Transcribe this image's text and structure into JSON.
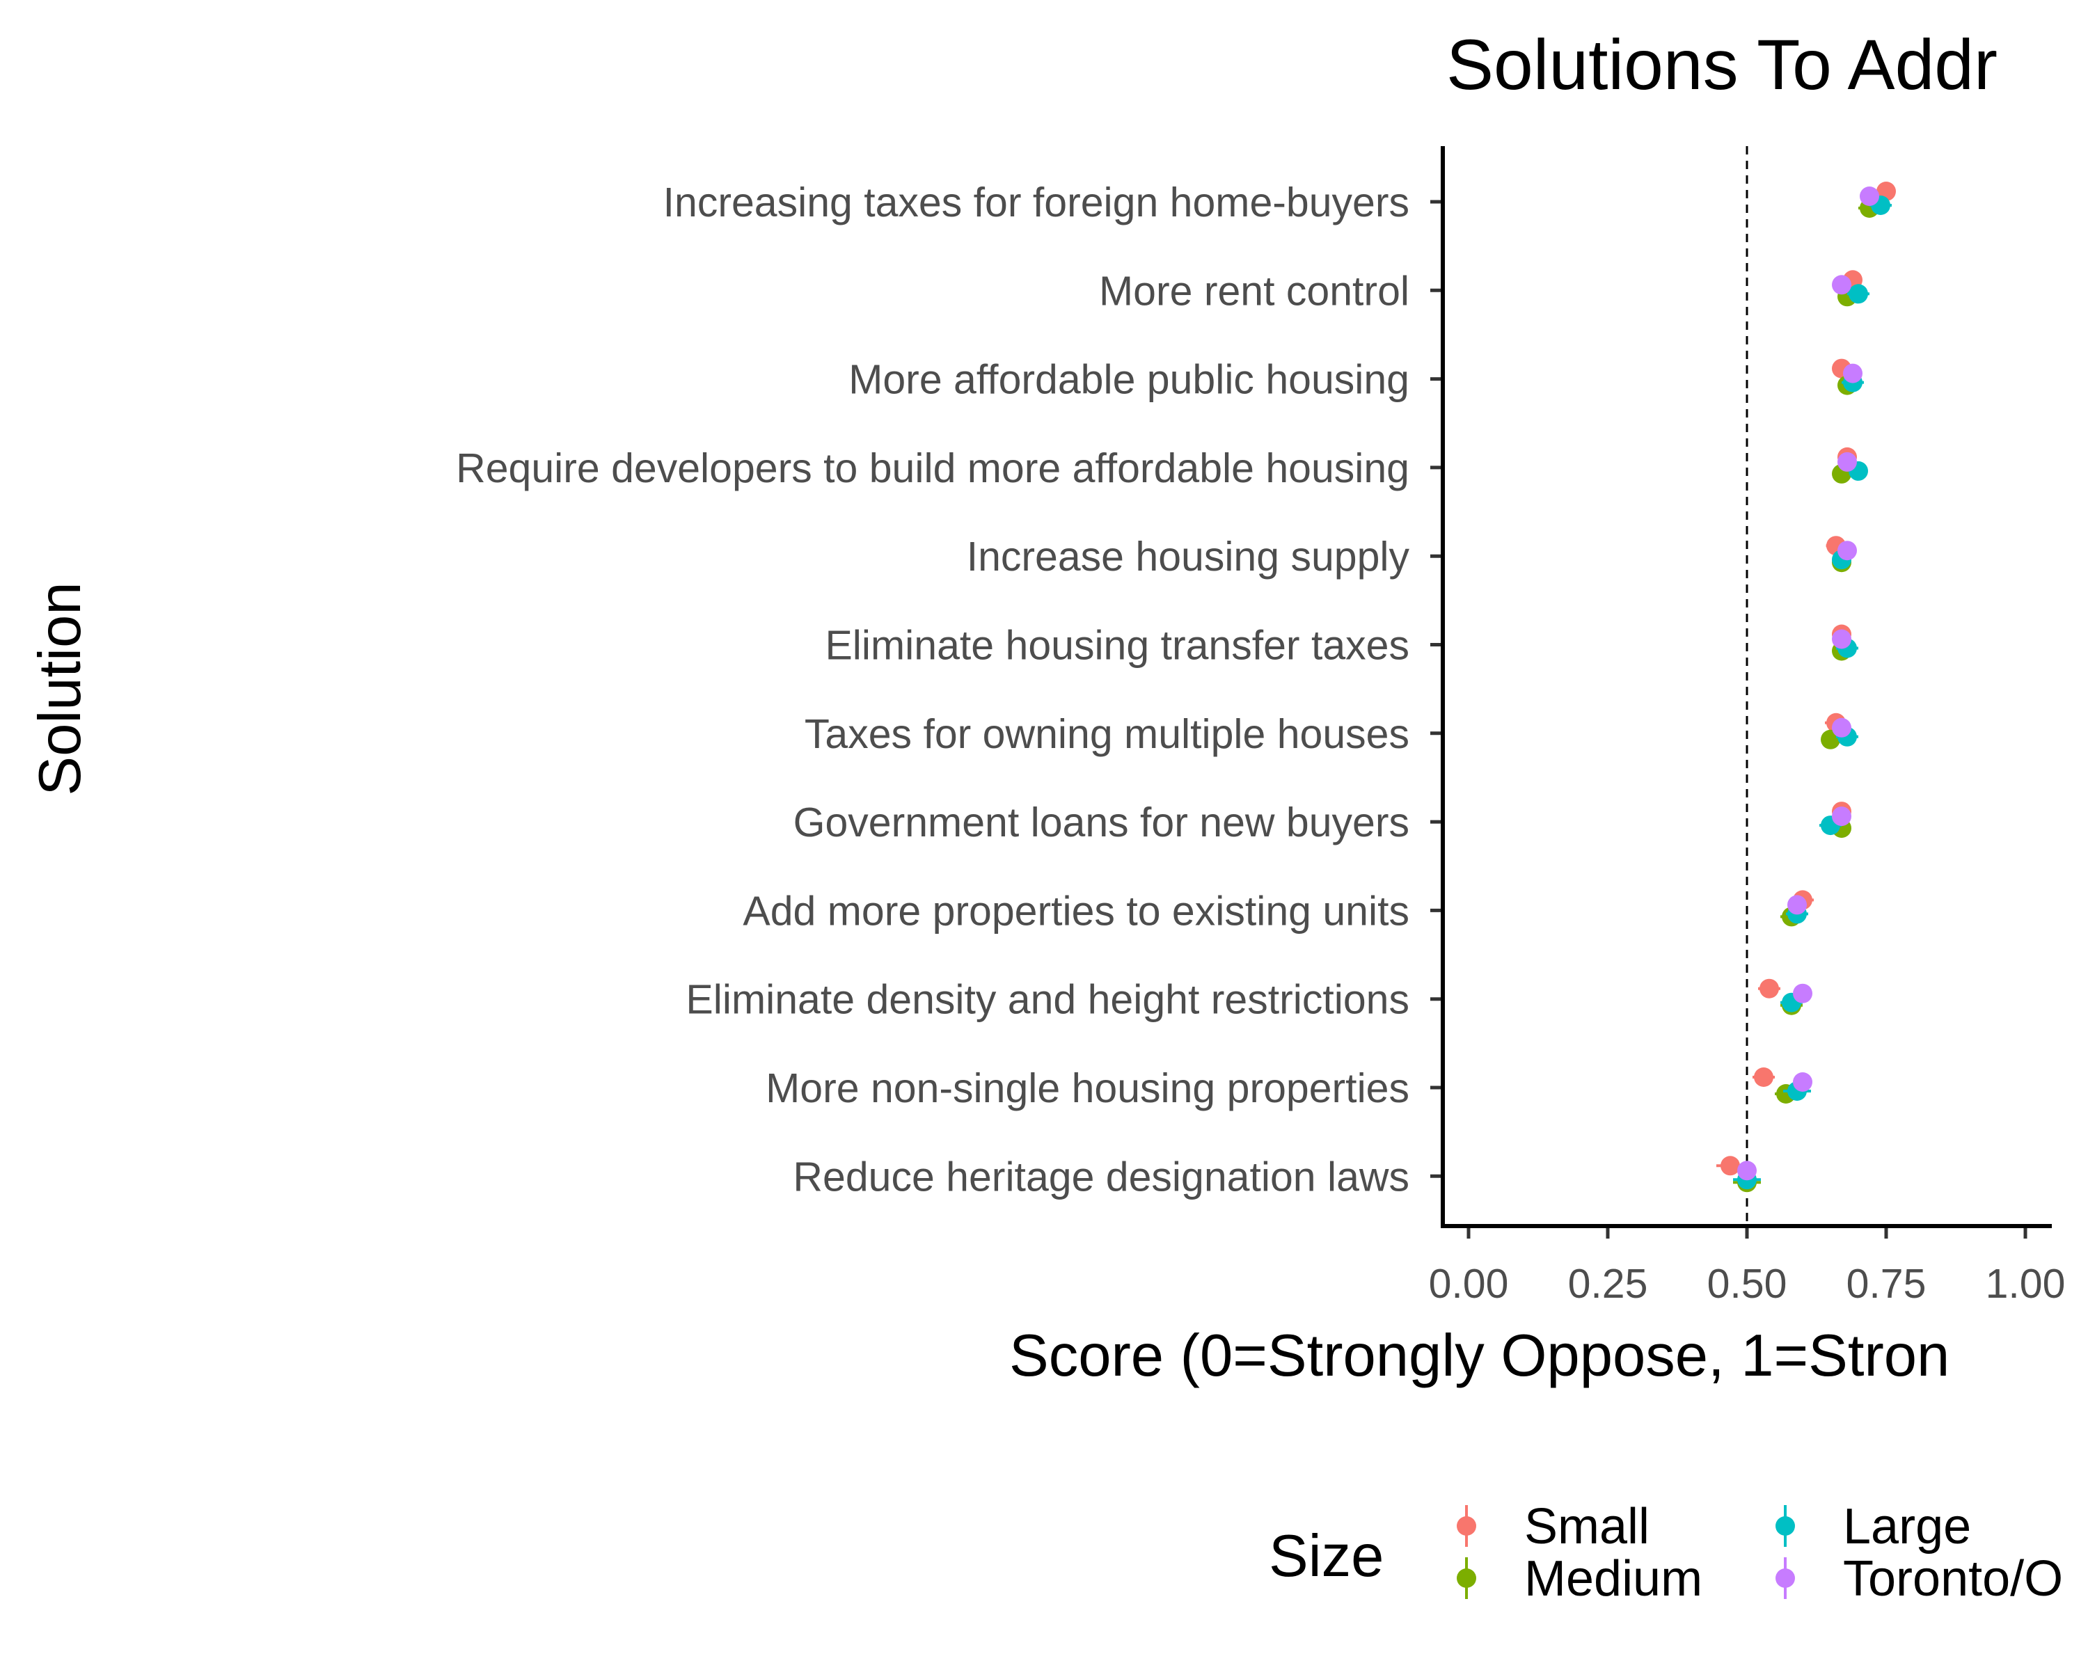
{
  "chart_data": {
    "type": "scatter",
    "title": "Solutions To Addr",
    "xlabel": "Score (0=Strongly Oppose, 1=Stron",
    "ylabel": "Solution",
    "xlim": [
      0,
      1
    ],
    "x_ticks": [
      "0.00",
      "0.25",
      "0.50",
      "0.75",
      "1.00"
    ],
    "reference_line": 0.5,
    "grid": false,
    "legend_position": "bottom",
    "legend_title": "Size",
    "categories": [
      "Increasing taxes for foreign home-buyers",
      "More rent control",
      "More affordable public housing",
      "Require developers to build more affordable housing",
      "Increase housing supply",
      "Eliminate housing transfer taxes",
      "Taxes for owning multiple houses",
      "Government loans for new buyers",
      "Add more properties to existing units",
      "Eliminate density and height restrictions",
      "More non-single housing properties",
      "Reduce heritage designation laws"
    ],
    "series": [
      {
        "name": "Small",
        "color": "#F8766D",
        "values": [
          0.75,
          0.69,
          0.67,
          0.68,
          0.66,
          0.67,
          0.66,
          0.67,
          0.6,
          0.54,
          0.53,
          0.47
        ],
        "errors": [
          0.015,
          0.015,
          0.015,
          0.015,
          0.018,
          0.015,
          0.02,
          0.015,
          0.02,
          0.02,
          0.02,
          0.025
        ]
      },
      {
        "name": "Medium",
        "color": "#7CAE00",
        "values": [
          0.72,
          0.68,
          0.68,
          0.67,
          0.67,
          0.67,
          0.65,
          0.67,
          0.58,
          0.58,
          0.57,
          0.5
        ],
        "errors": [
          0.02,
          0.015,
          0.015,
          0.015,
          0.015,
          0.015,
          0.015,
          0.015,
          0.02,
          0.02,
          0.02,
          0.025
        ]
      },
      {
        "name": "Large",
        "color": "#00BFC4",
        "values": [
          0.74,
          0.7,
          0.69,
          0.7,
          0.67,
          0.68,
          0.68,
          0.65,
          0.59,
          0.58,
          0.59,
          0.5
        ],
        "errors": [
          0.02,
          0.02,
          0.02,
          0.015,
          0.015,
          0.02,
          0.02,
          0.02,
          0.02,
          0.02,
          0.025,
          0.025
        ]
      },
      {
        "name": "Toronto/O",
        "color": "#C77CFF",
        "values": [
          0.72,
          0.67,
          0.69,
          0.68,
          0.68,
          0.67,
          0.67,
          0.67,
          0.59,
          0.6,
          0.6,
          0.5
        ],
        "errors": [
          0.015,
          0.015,
          0.015,
          0.015,
          0.015,
          0.015,
          0.015,
          0.015,
          0.015,
          0.015,
          0.015,
          0.015
        ]
      }
    ]
  }
}
